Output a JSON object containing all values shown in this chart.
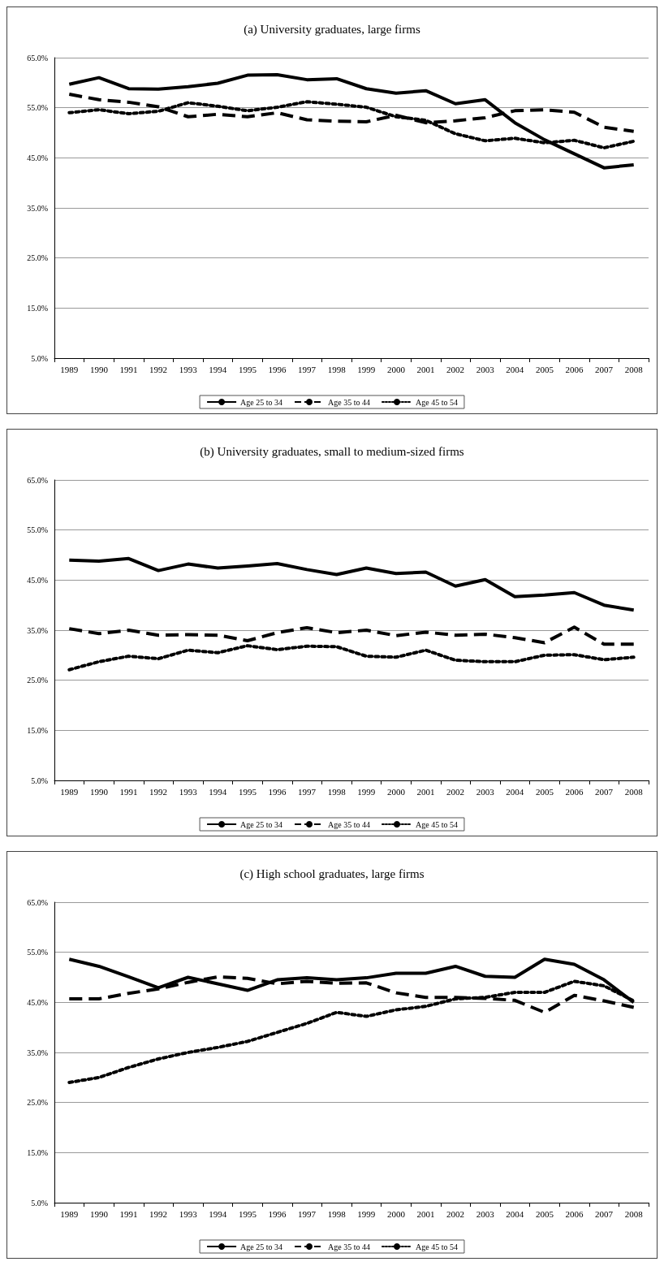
{
  "chart_data": [
    {
      "type": "line",
      "title": "(a) University graduates, large firms",
      "categories": [
        "1989",
        "1990",
        "1991",
        "1992",
        "1993",
        "1994",
        "1995",
        "1996",
        "1997",
        "1998",
        "1999",
        "2000",
        "2001",
        "2002",
        "2003",
        "2004",
        "2005",
        "2006",
        "2007",
        "2008"
      ],
      "series": [
        {
          "name": "Age 25 to 34",
          "color": "#000000",
          "line_style": "solid",
          "values": [
            59.7,
            61,
            58.8,
            58.7,
            59.2,
            59.9,
            61.5,
            61.6,
            60.6,
            60.8,
            58.8,
            57.9,
            58.4,
            55.8,
            56.6,
            52,
            48.6,
            45.8,
            43,
            43.6
          ]
        },
        {
          "name": "Age 35 to 44",
          "color": "#000000",
          "line_style": "dashed",
          "values": [
            57.7,
            56.6,
            56.1,
            55.2,
            53.2,
            53.7,
            53.2,
            54,
            52.6,
            52.3,
            52.2,
            53.5,
            52,
            52.4,
            53,
            54.4,
            54.6,
            54.1,
            51.1,
            50.3
          ]
        },
        {
          "name": "Age 45 to 54",
          "color": "#000000",
          "line_style": "dotted",
          "values": [
            54,
            54.6,
            53.8,
            54.3,
            56,
            55.3,
            54.4,
            55.1,
            56.2,
            55.7,
            55.1,
            53.2,
            52.5,
            49.8,
            48.4,
            48.9,
            48,
            48.5,
            47,
            48.3
          ]
        }
      ],
      "ylim": [
        5,
        65
      ],
      "yticks": [
        {
          "value": 5,
          "label": "5.0%"
        },
        {
          "value": 15,
          "label": "15.0%"
        },
        {
          "value": 25,
          "label": "25.0%"
        },
        {
          "value": 35,
          "label": "35.0%"
        },
        {
          "value": 45,
          "label": "45.0%"
        },
        {
          "value": 55,
          "label": "55.0%"
        },
        {
          "value": 65,
          "label": "65.0%"
        }
      ],
      "grid": "y",
      "legend": "bottom",
      "marker": "none"
    },
    {
      "type": "line",
      "title": "(b) University graduates, small to medium-sized firms",
      "categories": [
        "1989",
        "1990",
        "1991",
        "1992",
        "1993",
        "1994",
        "1995",
        "1996",
        "1997",
        "1998",
        "1999",
        "2000",
        "2001",
        "2002",
        "2003",
        "2004",
        "2005",
        "2006",
        "2007",
        "2008"
      ],
      "series": [
        {
          "name": "Age 25 to 34",
          "color": "#000000",
          "line_style": "solid",
          "values": [
            49,
            48.8,
            49.3,
            46.9,
            48.2,
            47.4,
            47.8,
            48.3,
            47.1,
            46.1,
            47.4,
            46.3,
            46.6,
            43.8,
            45.1,
            41.7,
            42,
            42.5,
            40,
            39
          ]
        },
        {
          "name": "Age 35 to 44",
          "color": "#000000",
          "line_style": "dashed",
          "values": [
            35.3,
            34.3,
            35,
            34,
            34.1,
            34,
            32.9,
            34.5,
            35.5,
            34.5,
            35,
            33.9,
            34.6,
            34,
            34.2,
            33.5,
            32.5,
            35.6,
            32.2,
            32.2
          ]
        },
        {
          "name": "Age 45 to 54",
          "color": "#000000",
          "line_style": "dotted",
          "values": [
            27.1,
            28.7,
            29.8,
            29.3,
            31,
            30.5,
            31.9,
            31.1,
            31.8,
            31.7,
            29.8,
            29.6,
            31,
            29,
            28.7,
            28.7,
            30,
            30.1,
            29.1,
            29.6
          ]
        }
      ],
      "ylim": [
        5,
        65
      ],
      "yticks": [
        {
          "value": 5,
          "label": "5.0%"
        },
        {
          "value": 15,
          "label": "15.0%"
        },
        {
          "value": 25,
          "label": "25.0%"
        },
        {
          "value": 35,
          "label": "35.0%"
        },
        {
          "value": 45,
          "label": "45.0%"
        },
        {
          "value": 55,
          "label": "55.0%"
        },
        {
          "value": 65,
          "label": "65.0%"
        }
      ],
      "grid": "y",
      "legend": "bottom",
      "marker": "none"
    },
    {
      "type": "line",
      "title": "(c) High school graduates, large firms",
      "categories": [
        "1989",
        "1990",
        "1991",
        "1992",
        "1993",
        "1994",
        "1995",
        "1996",
        "1997",
        "1998",
        "1999",
        "2000",
        "2001",
        "2002",
        "2003",
        "2004",
        "2005",
        "2006",
        "2007",
        "2008"
      ],
      "series": [
        {
          "name": "Age 25 to 34",
          "color": "#000000",
          "line_style": "solid",
          "values": [
            53.6,
            52.2,
            50.1,
            47.9,
            50,
            48.7,
            47.4,
            49.5,
            49.9,
            49.5,
            49.9,
            50.8,
            50.8,
            52.2,
            50.2,
            50,
            53.6,
            52.6,
            49.5,
            45
          ]
        },
        {
          "name": "Age 35 to 44",
          "color": "#000000",
          "line_style": "dashed",
          "values": [
            45.7,
            45.7,
            46.8,
            47.7,
            49,
            50.1,
            49.8,
            48.7,
            49.2,
            48.8,
            48.9,
            46.9,
            46,
            46,
            45.8,
            45.4,
            43,
            46.4,
            45.3,
            44
          ]
        },
        {
          "name": "Age 45 to 54",
          "color": "#000000",
          "line_style": "dotted",
          "values": [
            29,
            30,
            32,
            33.7,
            35,
            36,
            37.2,
            39,
            40.8,
            43,
            42.2,
            43.5,
            44.2,
            45.7,
            46,
            47,
            47,
            49.2,
            48.3,
            45.3
          ]
        }
      ],
      "ylim": [
        5,
        65
      ],
      "yticks": [
        {
          "value": 5,
          "label": "5.0%"
        },
        {
          "value": 15,
          "label": "15.0%"
        },
        {
          "value": 25,
          "label": "25.0%"
        },
        {
          "value": 35,
          "label": "35.0%"
        },
        {
          "value": 45,
          "label": "45.0%"
        },
        {
          "value": 55,
          "label": "55.0%"
        },
        {
          "value": 65,
          "label": "65.0%"
        }
      ],
      "grid": "y",
      "legend": "bottom",
      "marker": "none"
    }
  ]
}
